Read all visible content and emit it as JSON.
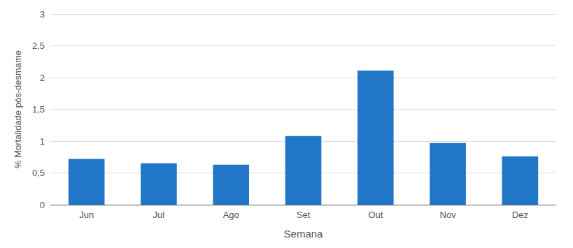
{
  "chart_data": {
    "type": "bar",
    "categories": [
      "Jun",
      "Jul",
      "Ago",
      "Set",
      "Out",
      "Nov",
      "Dez"
    ],
    "values": [
      0.72,
      0.65,
      0.63,
      1.08,
      2.11,
      0.97,
      0.76
    ],
    "color": "#2176C7",
    "xlabel": "Semana",
    "ylabel": "% Mortalidade pós-desmame",
    "ylim": [
      0,
      3.0
    ],
    "yticks": [
      0,
      {
        "value": 0.5,
        "label": "0,5"
      },
      1,
      {
        "value": 1.5,
        "label": "1,5"
      },
      2,
      {
        "value": 2.5,
        "label": "2,5"
      },
      3
    ],
    "grid": true
  }
}
